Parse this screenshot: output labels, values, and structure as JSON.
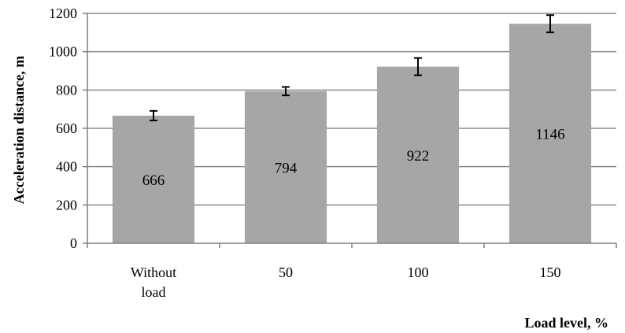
{
  "chart_data": {
    "type": "bar",
    "categories": [
      [
        "Without",
        "load"
      ],
      [
        "50"
      ],
      [
        "100"
      ],
      [
        "150"
      ]
    ],
    "values": [
      666,
      794,
      922,
      1146
    ],
    "error": [
      25,
      22,
      45,
      45
    ],
    "data_labels": [
      "666",
      "794",
      "922",
      "1146"
    ],
    "ylabel": "Acceleration distance, m",
    "xlabel": "Load level, %",
    "ylim": [
      0,
      1200
    ],
    "yticks": [
      0,
      200,
      400,
      600,
      800,
      1000,
      1200
    ],
    "ytick_labels": [
      "0",
      "200",
      "400",
      "600",
      "800",
      "1000",
      "1200"
    ],
    "gridlines": true,
    "legend": false,
    "colors": {
      "bar": "#a6a6a6",
      "grid": "#8c8c8c",
      "axis": "#808080",
      "error": "#000000"
    }
  }
}
